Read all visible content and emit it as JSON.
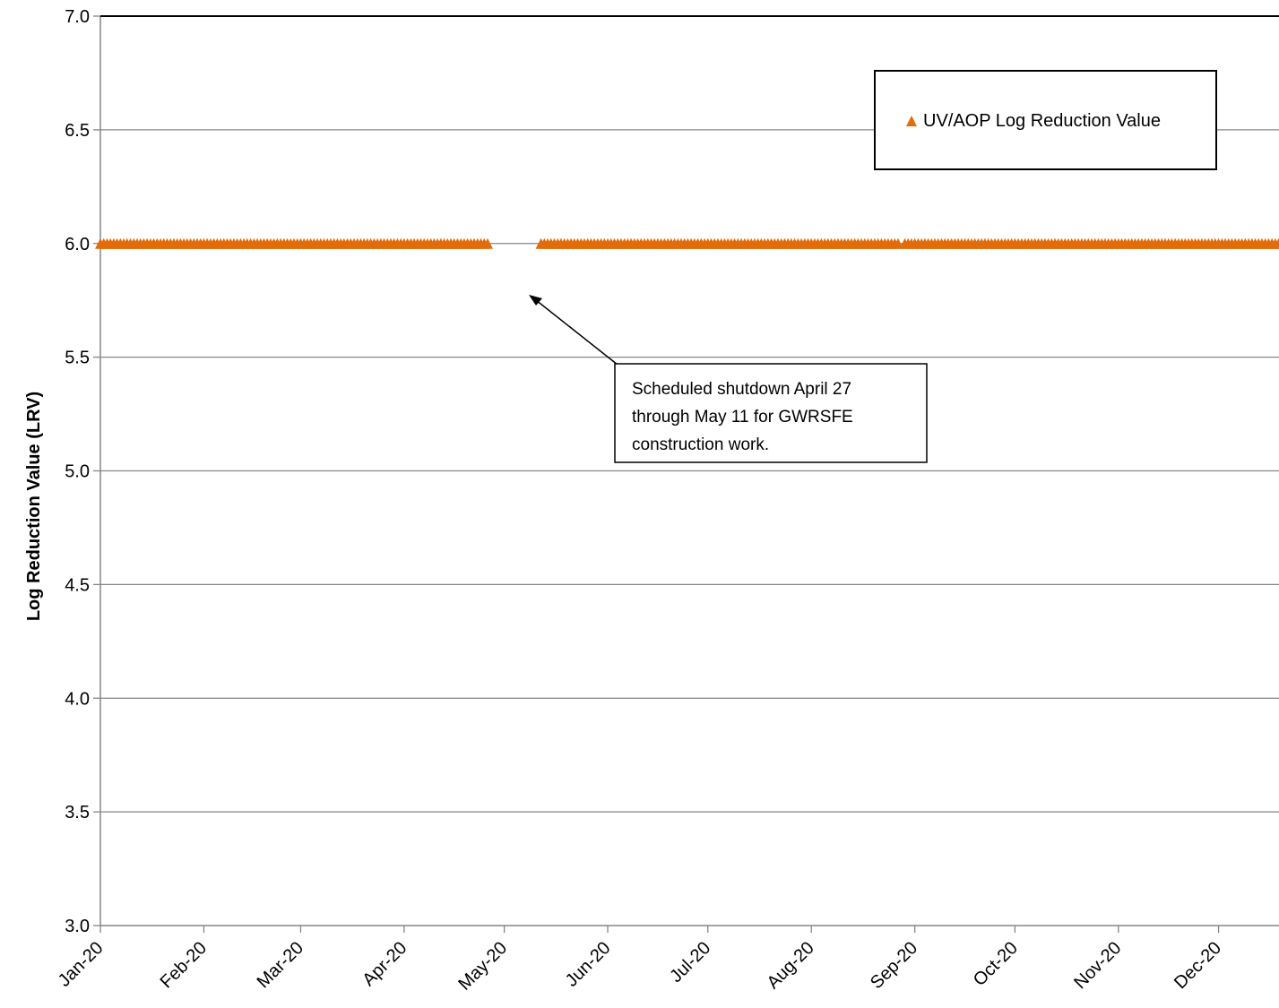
{
  "chart_data": {
    "type": "scatter",
    "title": "",
    "xlabel": "",
    "ylabel": "Log Reduction Value (LRV)",
    "ylim": [
      3.0,
      7.0
    ],
    "yticks": [
      "3.0",
      "3.5",
      "4.0",
      "4.5",
      "5.0",
      "5.5",
      "6.0",
      "6.5",
      "7.0"
    ],
    "xlim": [
      "2020-01-01",
      "2021-01-01"
    ],
    "xticks": [
      "Jan-20",
      "Feb-20",
      "Mar-20",
      "Apr-20",
      "May-20",
      "Jun-20",
      "Jul-20",
      "Aug-20",
      "Sep-20",
      "Oct-20",
      "Nov-20",
      "Dec-20"
    ],
    "grid": true,
    "legend": "top-right",
    "series": [
      {
        "name": "UV/AOP Log Reduction Value",
        "marker": "triangle",
        "color": "#E36C0A",
        "value": 6.0,
        "segments": [
          {
            "start": "2020-01-01",
            "end": "2020-04-26"
          },
          {
            "start": "2020-05-12",
            "end": "2020-08-27"
          },
          {
            "start": "2020-08-29",
            "end": "2020-12-31"
          }
        ]
      }
    ],
    "annotations": [
      {
        "lines": [
          "Scheduled shutdown April 27",
          "through May 11 for GWRSFE",
          "construction work."
        ],
        "points_to": {
          "x": "2020-05-07",
          "y": 5.75
        }
      }
    ]
  }
}
